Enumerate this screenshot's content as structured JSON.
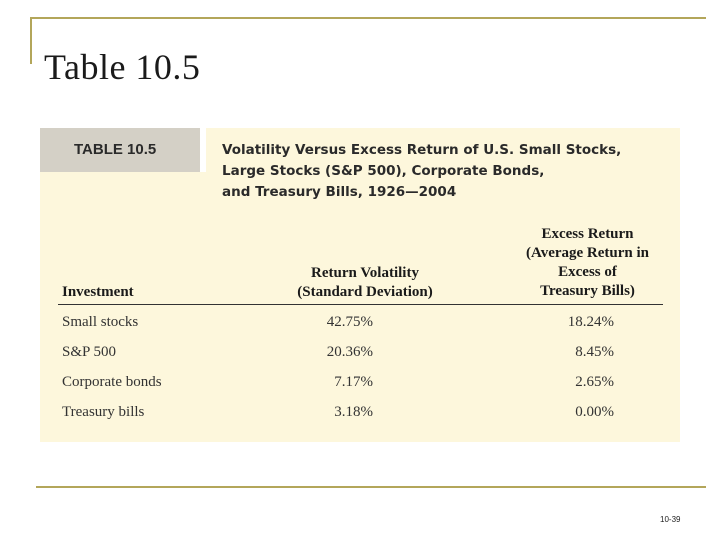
{
  "slide": {
    "title": "Table 10.5",
    "page_number": "10-39"
  },
  "table": {
    "tag": "TABLE 10.5",
    "caption_lines": [
      "Volatility Versus Excess Return of U.S. Small Stocks,",
      "Large Stocks (S&P 500), Corporate Bonds,",
      "and Treasury Bills, 1926—2004"
    ],
    "columns": {
      "investment": [
        "Investment"
      ],
      "volatility": [
        "Return Volatility",
        "(Standard Deviation)"
      ],
      "excess": [
        "Excess Return",
        "(Average Return in",
        "Excess of",
        "Treasury Bills)"
      ]
    },
    "rows": [
      {
        "investment": "Small stocks",
        "volatility": "42.75%",
        "excess": "18.24%"
      },
      {
        "investment": "S&P 500",
        "volatility": "20.36%",
        "excess": "8.45%"
      },
      {
        "investment": "Corporate bonds",
        "volatility": "7.17%",
        "excess": "2.65%"
      },
      {
        "investment": "Treasury bills",
        "volatility": "3.18%",
        "excess": "0.00%"
      }
    ]
  },
  "colors": {
    "frame": "#b3a65a",
    "panel": "#fdf7dc",
    "tag": "#d4d0c6"
  }
}
